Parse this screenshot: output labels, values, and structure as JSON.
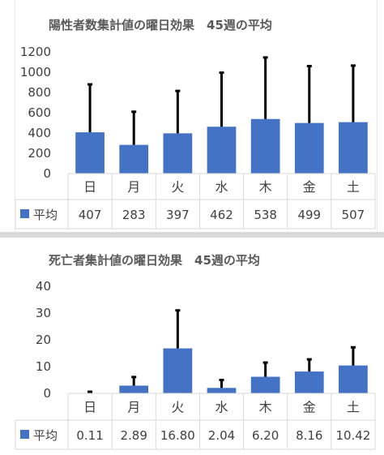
{
  "chart_data": [
    {
      "type": "bar",
      "title": "陽性者数集計値の曜日効果　45週の平均",
      "categories": [
        "日",
        "月",
        "火",
        "水",
        "木",
        "金",
        "土"
      ],
      "series": [
        {
          "name": "平均",
          "values": [
            407,
            283,
            397,
            462,
            538,
            499,
            507
          ],
          "value_labels": [
            "407",
            "283",
            "397",
            "462",
            "538",
            "499",
            "507"
          ],
          "error_upper": [
            880,
            610,
            815,
            995,
            1145,
            1060,
            1065
          ]
        }
      ],
      "y_ticks": [
        "0",
        "200",
        "400",
        "600",
        "800",
        "1000",
        "1200"
      ],
      "ylim": [
        0,
        1200
      ],
      "grid": false,
      "legend": "data table",
      "color": "#4472c4"
    },
    {
      "type": "bar",
      "title": "死亡者集計値の曜日効果　45週の平均",
      "categories": [
        "日",
        "月",
        "火",
        "水",
        "木",
        "金",
        "土"
      ],
      "series": [
        {
          "name": "平均",
          "values": [
            0.11,
            2.89,
            16.8,
            2.04,
            6.2,
            8.16,
            10.42
          ],
          "value_labels": [
            "0.11",
            "2.89",
            "16.80",
            "2.04",
            "6.20",
            "8.16",
            "10.42"
          ],
          "error_upper": [
            0.6,
            6.1,
            31.0,
            5.0,
            11.5,
            12.7,
            17.2
          ]
        }
      ],
      "y_ticks": [
        "0",
        "10",
        "20",
        "30",
        "40"
      ],
      "ylim": [
        0,
        40
      ],
      "grid": false,
      "legend": "data table",
      "color": "#4472c4"
    }
  ]
}
